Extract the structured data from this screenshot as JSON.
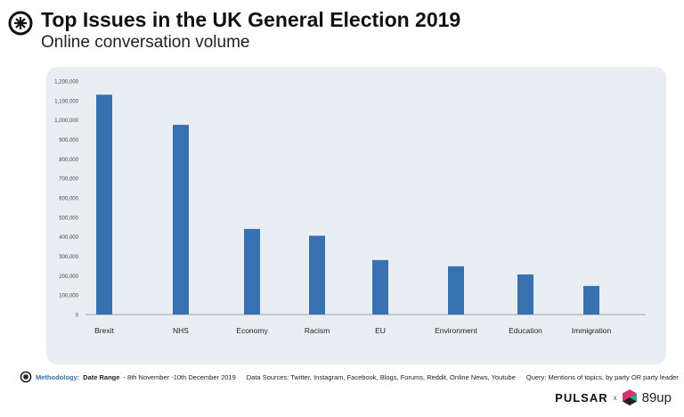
{
  "header": {
    "title": "Top Issues in the UK General Election 2019",
    "subtitle": "Online conversation volume"
  },
  "chart_data": {
    "type": "bar",
    "categories": [
      "Brexit",
      "NHS",
      "Economy",
      "Racism",
      "EU",
      "Environment",
      "Education",
      "Immigration"
    ],
    "values": [
      1130000,
      975000,
      440000,
      405000,
      280000,
      248000,
      206000,
      147000
    ],
    "ylim": [
      0,
      1200000
    ],
    "yticks": [
      "0",
      "100,000",
      "200,000",
      "300,000",
      "400,000",
      "500,000",
      "600,000",
      "700,000",
      "800,000",
      "900,000",
      "1,000,000",
      "1,100,000",
      "1,200,000"
    ],
    "bar_color": "#3871b0",
    "grid": false,
    "background": "#e9eef2"
  },
  "footer": {
    "methodology_label": "Methodology:",
    "date_range_label": "Date Range",
    "date_range": "- 8th November -10th December 2019",
    "data_sources": "Data Sources: Twitter, Instagram, Facebook, Blogs, Forums, Reddit, Online News, Youtube",
    "query": "Query: Mentions of topics, by party OR party leader"
  },
  "brand": {
    "pulsar": "PULSAR",
    "x": "x",
    "partner": "89up"
  }
}
